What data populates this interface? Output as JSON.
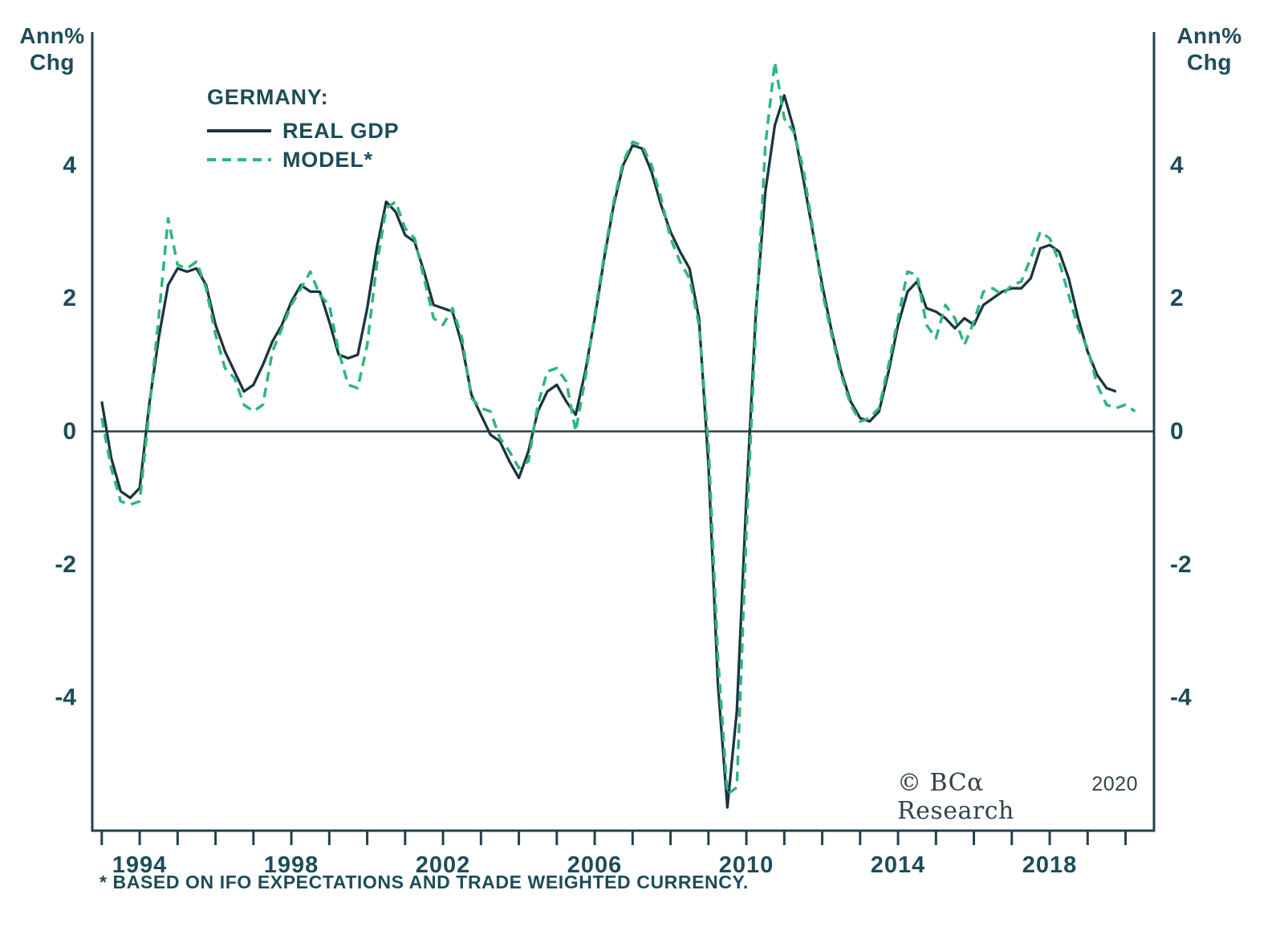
{
  "axes": {
    "unit_label": "Ann%\nChg"
  },
  "legend": {
    "title": "GERMANY:",
    "items": [
      {
        "label": "REAL GDP",
        "style": "solid"
      },
      {
        "label": "MODEL*",
        "style": "dashed"
      }
    ]
  },
  "footnote": "* BASED ON IFO EXPECTATIONS AND TRADE WEIGHTED CURRENCY.",
  "copyright": {
    "brand": "© BCα Research",
    "year": "2020"
  },
  "colors": {
    "text": "#1d4c59",
    "axis": "#24404b",
    "gdp": "#1b3441",
    "model": "#2eb67c",
    "copyright": "#31424a"
  },
  "chart_data": {
    "type": "line",
    "title": "GERMANY: REAL GDP vs MODEL",
    "ylabel": "Ann% Chg",
    "xlabel": "",
    "xlim": [
      1992.75,
      2020.75
    ],
    "ylim": [
      -6,
      6
    ],
    "yticks": [
      -4,
      -2,
      0,
      2,
      4
    ],
    "xticks": [
      1993,
      1994,
      1995,
      1996,
      1997,
      1998,
      1999,
      2000,
      2001,
      2002,
      2003,
      2004,
      2005,
      2006,
      2007,
      2008,
      2009,
      2010,
      2011,
      2012,
      2013,
      2014,
      2015,
      2016,
      2017,
      2018,
      2019,
      2020
    ],
    "xtick_labels": [
      1994,
      1998,
      2002,
      2006,
      2010,
      2014,
      2018
    ],
    "zero_line": true,
    "grid": false,
    "legend_position": "top-left",
    "x": [
      1993,
      1993.25,
      1993.5,
      1993.75,
      1994,
      1994.25,
      1994.5,
      1994.75,
      1995,
      1995.25,
      1995.5,
      1995.75,
      1996,
      1996.25,
      1996.5,
      1996.75,
      1997,
      1997.25,
      1997.5,
      1997.75,
      1998,
      1998.25,
      1998.5,
      1998.75,
      1999,
      1999.25,
      1999.5,
      1999.75,
      2000,
      2000.25,
      2000.5,
      2000.75,
      2001,
      2001.25,
      2001.5,
      2001.75,
      2002,
      2002.25,
      2002.5,
      2002.75,
      2003,
      2003.25,
      2003.5,
      2003.75,
      2004,
      2004.25,
      2004.5,
      2004.75,
      2005,
      2005.25,
      2005.5,
      2005.75,
      2006,
      2006.25,
      2006.5,
      2006.75,
      2007,
      2007.25,
      2007.5,
      2007.75,
      2008,
      2008.25,
      2008.5,
      2008.75,
      2009,
      2009.25,
      2009.5,
      2009.75,
      2010,
      2010.25,
      2010.5,
      2010.75,
      2011,
      2011.25,
      2011.5,
      2011.75,
      2012,
      2012.25,
      2012.5,
      2012.75,
      2013,
      2013.25,
      2013.5,
      2013.75,
      2014,
      2014.25,
      2014.5,
      2014.75,
      2015,
      2015.25,
      2015.5,
      2015.75,
      2016,
      2016.25,
      2016.5,
      2016.75,
      2017,
      2017.25,
      2017.5,
      2017.75,
      2018,
      2018.25,
      2018.5,
      2018.75,
      2019,
      2019.25,
      2019.5,
      2019.75,
      2020,
      2020.25
    ],
    "series": [
      {
        "name": "REAL GDP",
        "values": [
          0.45,
          -0.4,
          -0.9,
          -1.0,
          -0.85,
          0.4,
          1.4,
          2.2,
          2.45,
          2.4,
          2.45,
          2.2,
          1.6,
          1.2,
          0.9,
          0.6,
          0.7,
          1.0,
          1.35,
          1.6,
          1.95,
          2.2,
          2.1,
          2.1,
          1.65,
          1.15,
          1.1,
          1.15,
          1.85,
          2.75,
          3.45,
          3.3,
          2.95,
          2.85,
          2.4,
          1.9,
          1.85,
          1.8,
          1.3,
          0.55,
          0.25,
          -0.05,
          -0.15,
          -0.45,
          -0.7,
          -0.3,
          0.3,
          0.6,
          0.7,
          0.45,
          0.25,
          0.9,
          1.7,
          2.6,
          3.4,
          4.0,
          4.3,
          4.25,
          3.9,
          3.4,
          3.0,
          2.7,
          2.45,
          1.7,
          -0.5,
          -3.8,
          -5.65,
          -4.2,
          -1.0,
          1.8,
          3.6,
          4.6,
          5.05,
          4.55,
          3.8,
          3.0,
          2.2,
          1.5,
          0.9,
          0.45,
          0.2,
          0.15,
          0.3,
          0.9,
          1.6,
          2.1,
          2.25,
          1.85,
          1.8,
          1.7,
          1.55,
          1.7,
          1.6,
          1.9,
          2.0,
          2.1,
          2.15,
          2.15,
          2.3,
          2.75,
          2.8,
          2.7,
          2.3,
          1.7,
          1.2,
          0.85,
          0.65,
          0.6
        ]
      },
      {
        "name": "MODEL*",
        "values": [
          0.2,
          -0.55,
          -1.05,
          -1.1,
          -1.05,
          0.3,
          1.7,
          3.2,
          2.5,
          2.45,
          2.55,
          2.15,
          1.45,
          0.95,
          0.8,
          0.4,
          0.3,
          0.4,
          1.2,
          1.55,
          1.9,
          2.15,
          2.4,
          2.05,
          1.9,
          1.2,
          0.7,
          0.65,
          1.3,
          2.5,
          3.35,
          3.45,
          3.05,
          2.9,
          2.3,
          1.7,
          1.6,
          1.85,
          1.4,
          0.5,
          0.35,
          0.3,
          -0.1,
          -0.3,
          -0.55,
          -0.45,
          0.4,
          0.9,
          0.95,
          0.75,
          0.0,
          0.8,
          1.75,
          2.65,
          3.45,
          4.05,
          4.35,
          4.3,
          4.0,
          3.5,
          2.9,
          2.55,
          2.3,
          1.6,
          -0.2,
          -3.4,
          -5.45,
          -5.35,
          -1.5,
          1.6,
          4.3,
          5.55,
          4.7,
          4.5,
          3.95,
          3.05,
          2.1,
          1.45,
          0.85,
          0.4,
          0.15,
          0.2,
          0.35,
          1.0,
          1.7,
          2.4,
          2.35,
          1.6,
          1.4,
          1.9,
          1.7,
          1.3,
          1.65,
          2.1,
          2.15,
          2.05,
          2.2,
          2.25,
          2.6,
          3.0,
          2.9,
          2.55,
          2.05,
          1.55,
          1.25,
          0.7,
          0.4,
          0.35,
          0.4,
          0.3
        ]
      }
    ]
  }
}
